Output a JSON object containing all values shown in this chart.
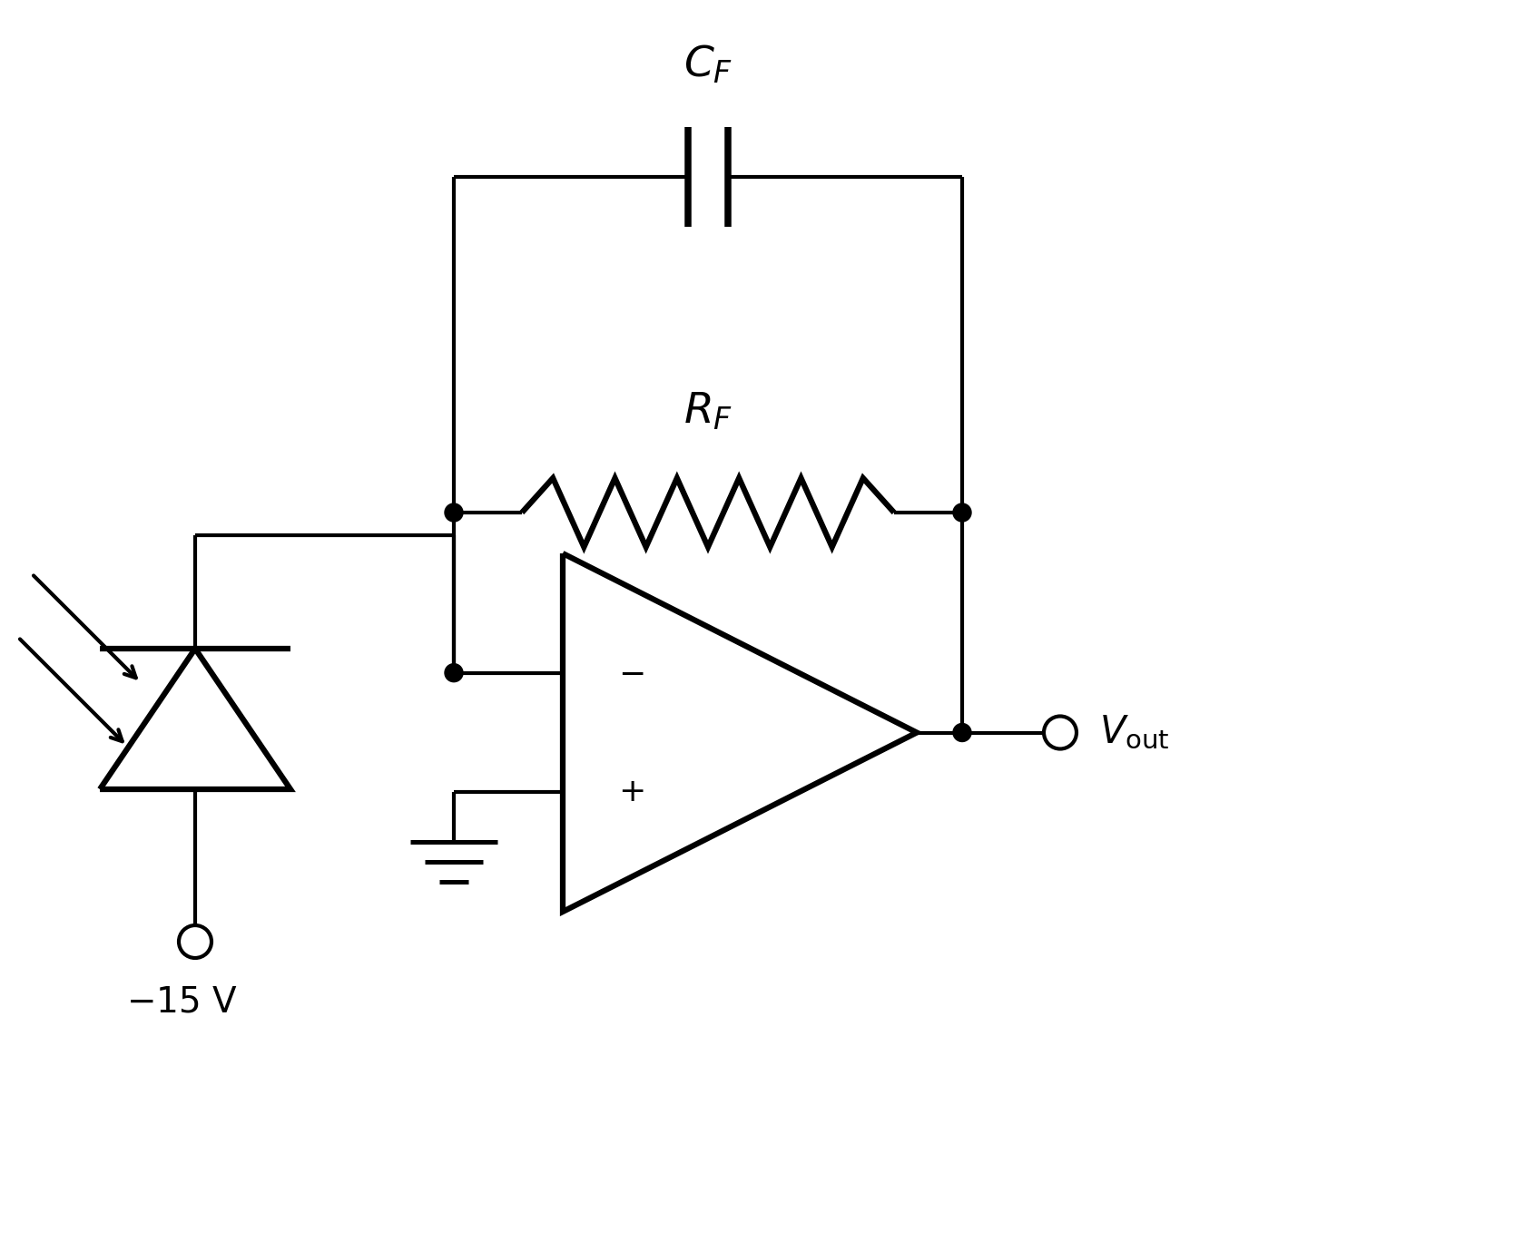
{
  "bg_color": "#ffffff",
  "line_color": "#000000",
  "lw": 3.0,
  "lw_thick": 4.5,
  "figsize": [
    16.79,
    13.79
  ],
  "dpi": 100,
  "cf_label": "$C_F$",
  "rf_label": "$R_F$",
  "vout_label": "$V_{\\mathrm{out}}$",
  "neg15_label": "$-15\\ \\mathrm{V}$",
  "minus_label": "$-$",
  "plus_label": "$+$",
  "label_fontsize": 30,
  "symbol_fontsize": 26
}
